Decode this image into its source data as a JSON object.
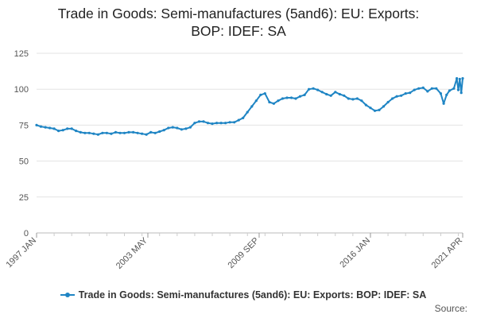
{
  "chart_data": {
    "type": "line",
    "title_line1": "Trade in Goods: Semi-manufactures (5and6): EU: Exports:",
    "title_line2": "BOP: IDEF: SA",
    "xlabel": "",
    "ylabel": "",
    "ylim": [
      0,
      125
    ],
    "yticks": [
      0,
      25,
      50,
      75,
      100,
      125
    ],
    "xlim": [
      "1997-01",
      "2021-04"
    ],
    "xticks": [
      "1997 JAN",
      "2003 MAY",
      "2009 SEP",
      "2016 JAN",
      "2021 APR"
    ],
    "grid": true,
    "legend_position": "bottom",
    "source_label": "Source:",
    "series": [
      {
        "name": "Trade in Goods: Semi-manufactures (5and6): EU: Exports: BOP: IDEF: SA",
        "color": "#1f85c4",
        "points": [
          [
            "1997-01",
            75
          ],
          [
            "1997-04",
            74
          ],
          [
            "1997-07",
            73.5
          ],
          [
            "1997-10",
            73
          ],
          [
            "1998-01",
            72.5
          ],
          [
            "1998-04",
            71
          ],
          [
            "1998-07",
            71.5
          ],
          [
            "1998-10",
            72.5
          ],
          [
            "1999-01",
            72.5
          ],
          [
            "1999-04",
            71
          ],
          [
            "1999-07",
            70
          ],
          [
            "1999-10",
            69.5
          ],
          [
            "2000-01",
            69.5
          ],
          [
            "2000-04",
            69
          ],
          [
            "2000-07",
            68.5
          ],
          [
            "2000-10",
            69.5
          ],
          [
            "2001-01",
            69.5
          ],
          [
            "2001-04",
            69
          ],
          [
            "2001-07",
            70
          ],
          [
            "2001-10",
            69.5
          ],
          [
            "2002-01",
            69.5
          ],
          [
            "2002-04",
            70
          ],
          [
            "2002-07",
            70
          ],
          [
            "2002-10",
            69.5
          ],
          [
            "2003-01",
            69
          ],
          [
            "2003-04",
            68.5
          ],
          [
            "2003-07",
            70
          ],
          [
            "2003-10",
            69.5
          ],
          [
            "2004-01",
            70.5
          ],
          [
            "2004-04",
            71.5
          ],
          [
            "2004-07",
            73
          ],
          [
            "2004-10",
            73.5
          ],
          [
            "2005-01",
            73
          ],
          [
            "2005-04",
            72
          ],
          [
            "2005-07",
            72.5
          ],
          [
            "2005-10",
            73.5
          ],
          [
            "2006-01",
            76.5
          ],
          [
            "2006-04",
            77.5
          ],
          [
            "2006-07",
            77.5
          ],
          [
            "2006-10",
            76.5
          ],
          [
            "2007-01",
            76
          ],
          [
            "2007-04",
            76.5
          ],
          [
            "2007-07",
            76.5
          ],
          [
            "2007-10",
            76.5
          ],
          [
            "2008-01",
            77
          ],
          [
            "2008-04",
            77
          ],
          [
            "2008-07",
            78.5
          ],
          [
            "2008-10",
            80
          ],
          [
            "2009-01",
            84
          ],
          [
            "2009-04",
            88
          ],
          [
            "2009-07",
            92
          ],
          [
            "2009-10",
            96
          ],
          [
            "2010-01",
            97
          ],
          [
            "2010-04",
            91
          ],
          [
            "2010-07",
            90
          ],
          [
            "2010-10",
            92
          ],
          [
            "2011-01",
            93.5
          ],
          [
            "2011-04",
            94
          ],
          [
            "2011-07",
            94
          ],
          [
            "2011-10",
            93.5
          ],
          [
            "2012-01",
            95
          ],
          [
            "2012-04",
            96
          ],
          [
            "2012-07",
            100
          ],
          [
            "2012-10",
            100.5
          ],
          [
            "2013-01",
            99.5
          ],
          [
            "2013-04",
            98
          ],
          [
            "2013-07",
            96.5
          ],
          [
            "2013-10",
            95.5
          ],
          [
            "2014-01",
            98
          ],
          [
            "2014-04",
            96.5
          ],
          [
            "2014-07",
            95.5
          ],
          [
            "2014-10",
            93.5
          ],
          [
            "2015-01",
            93
          ],
          [
            "2015-04",
            93.5
          ],
          [
            "2015-07",
            92
          ],
          [
            "2015-10",
            89
          ],
          [
            "2016-01",
            87
          ],
          [
            "2016-04",
            85
          ],
          [
            "2016-07",
            85.5
          ],
          [
            "2016-10",
            88
          ],
          [
            "2017-01",
            91
          ],
          [
            "2017-04",
            93.5
          ],
          [
            "2017-07",
            95
          ],
          [
            "2017-10",
            95.5
          ],
          [
            "2018-01",
            97
          ],
          [
            "2018-04",
            97.5
          ],
          [
            "2018-07",
            99.5
          ],
          [
            "2018-10",
            100.5
          ],
          [
            "2019-01",
            101
          ],
          [
            "2019-04",
            98.5
          ],
          [
            "2019-07",
            100.5
          ],
          [
            "2019-10",
            100.5
          ],
          [
            "2020-01",
            97
          ],
          [
            "2020-03",
            90
          ],
          [
            "2020-05",
            96
          ],
          [
            "2020-07",
            99
          ],
          [
            "2020-10",
            100.5
          ],
          [
            "2020-12",
            107.5
          ],
          [
            "2021-01",
            99.5
          ],
          [
            "2021-02",
            107
          ],
          [
            "2021-03",
            97.5
          ],
          [
            "2021-04",
            107.5
          ]
        ]
      }
    ]
  }
}
